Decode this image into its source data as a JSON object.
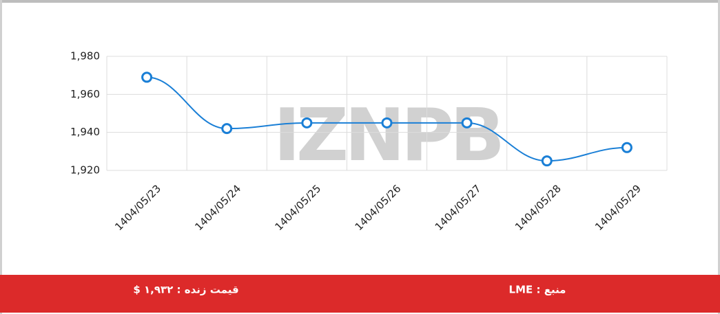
{
  "chart_data": {
    "type": "line",
    "categories": [
      "1404/05/23",
      "1404/05/24",
      "1404/05/25",
      "1404/05/26",
      "1404/05/27",
      "1404/05/28",
      "1404/05/29"
    ],
    "series": [
      {
        "color": "#1a7fd6",
        "values": [
          1969,
          1942,
          1945,
          1945,
          1945,
          1925,
          1932
        ]
      }
    ],
    "ylim": [
      1920,
      1980
    ],
    "yticks": [
      {
        "value": 1920,
        "label": "1,920"
      },
      {
        "value": 1940,
        "label": "1,940"
      },
      {
        "value": 1960,
        "label": "1,960"
      },
      {
        "value": 1980,
        "label": "1,980"
      }
    ],
    "grid": true,
    "watermark": "IZNPB"
  },
  "footer": {
    "source": "منبع : LME",
    "live_price": "قیمت زنده : ۱,۹۳۲ $"
  }
}
